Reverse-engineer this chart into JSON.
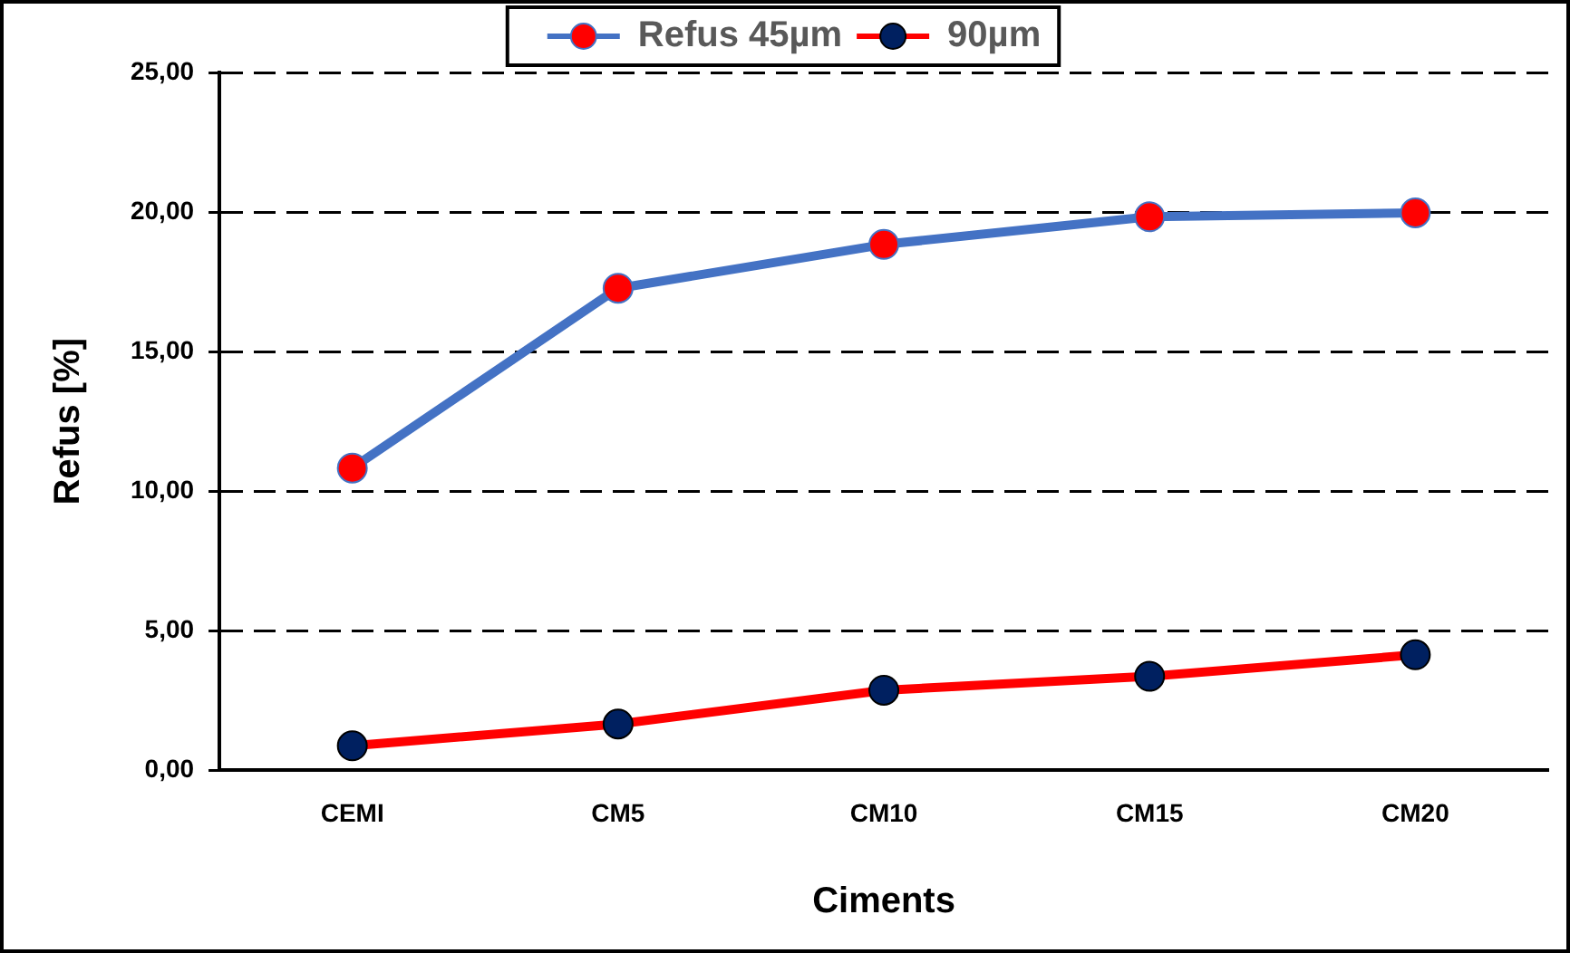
{
  "chart_data": {
    "type": "line",
    "xlabel": "Ciments",
    "ylabel": "Refus [%]",
    "categories": [
      "CEMI",
      "CM5",
      "CM10",
      "CM15",
      "CM20"
    ],
    "series": [
      {
        "name": "Refus 45µm",
        "color": "#4472c4",
        "colors": [
          "#ff0000",
          "#ff0000",
          "#ff0000",
          "#ff0000",
          "#ff0000"
        ],
        "values": [
          10.83,
          17.27,
          18.84,
          19.83,
          19.97
        ]
      },
      {
        "name": "90µm",
        "color": "#ff0000",
        "colors": [
          "#002060",
          "#002060",
          "#002060",
          "#002060",
          "#002060"
        ],
        "values": [
          0.88,
          1.66,
          2.87,
          3.37,
          4.14
        ]
      }
    ],
    "ylim": [
      0,
      25
    ],
    "yticks": [
      {
        "value": 0,
        "label": "0,00"
      },
      {
        "value": 5,
        "label": "5,00"
      },
      {
        "value": 10,
        "label": "10,00"
      },
      {
        "value": 15,
        "label": "15,00"
      },
      {
        "value": 20,
        "label": "20,00"
      },
      {
        "value": 25,
        "label": "25,00"
      }
    ],
    "grid": "y",
    "legend": "top",
    "marker": "circle",
    "line_style": "solid"
  }
}
